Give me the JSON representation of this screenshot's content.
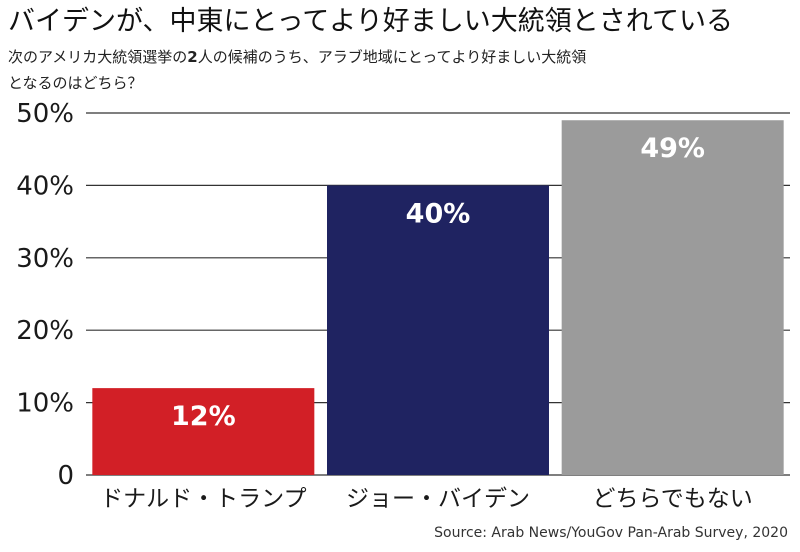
{
  "header": {
    "title": "バイデンが、中東にとってより好ましい大統領とされている",
    "subtitle_pre": "次のアメリカ大統領選挙の",
    "subtitle_bold": "2",
    "subtitle_post": "人の候補のうち、アラブ地域にとってより好ましい大統領となるのはどちら？"
  },
  "footer": {
    "source": "Source: Arab News/YouGov Pan-Arab Survey, 2020"
  },
  "chart_data": {
    "type": "bar",
    "categories": [
      "ドナルド・トランプ",
      "ジョー・バイデン",
      "どちらでもない"
    ],
    "values": [
      12,
      40,
      49
    ],
    "data_labels": [
      "12%",
      "40%",
      "49%"
    ],
    "colors": [
      "#d21f26",
      "#1f2361",
      "#9b9b9b"
    ],
    "ylim": [
      0,
      50
    ],
    "yticks": [
      0,
      10,
      20,
      30,
      40,
      50
    ],
    "ytick_labels": [
      "0",
      "10%",
      "20%",
      "30%",
      "40%",
      "50%"
    ],
    "grid": true,
    "gridline_color": "#333333",
    "label_color": "#ffffff"
  }
}
